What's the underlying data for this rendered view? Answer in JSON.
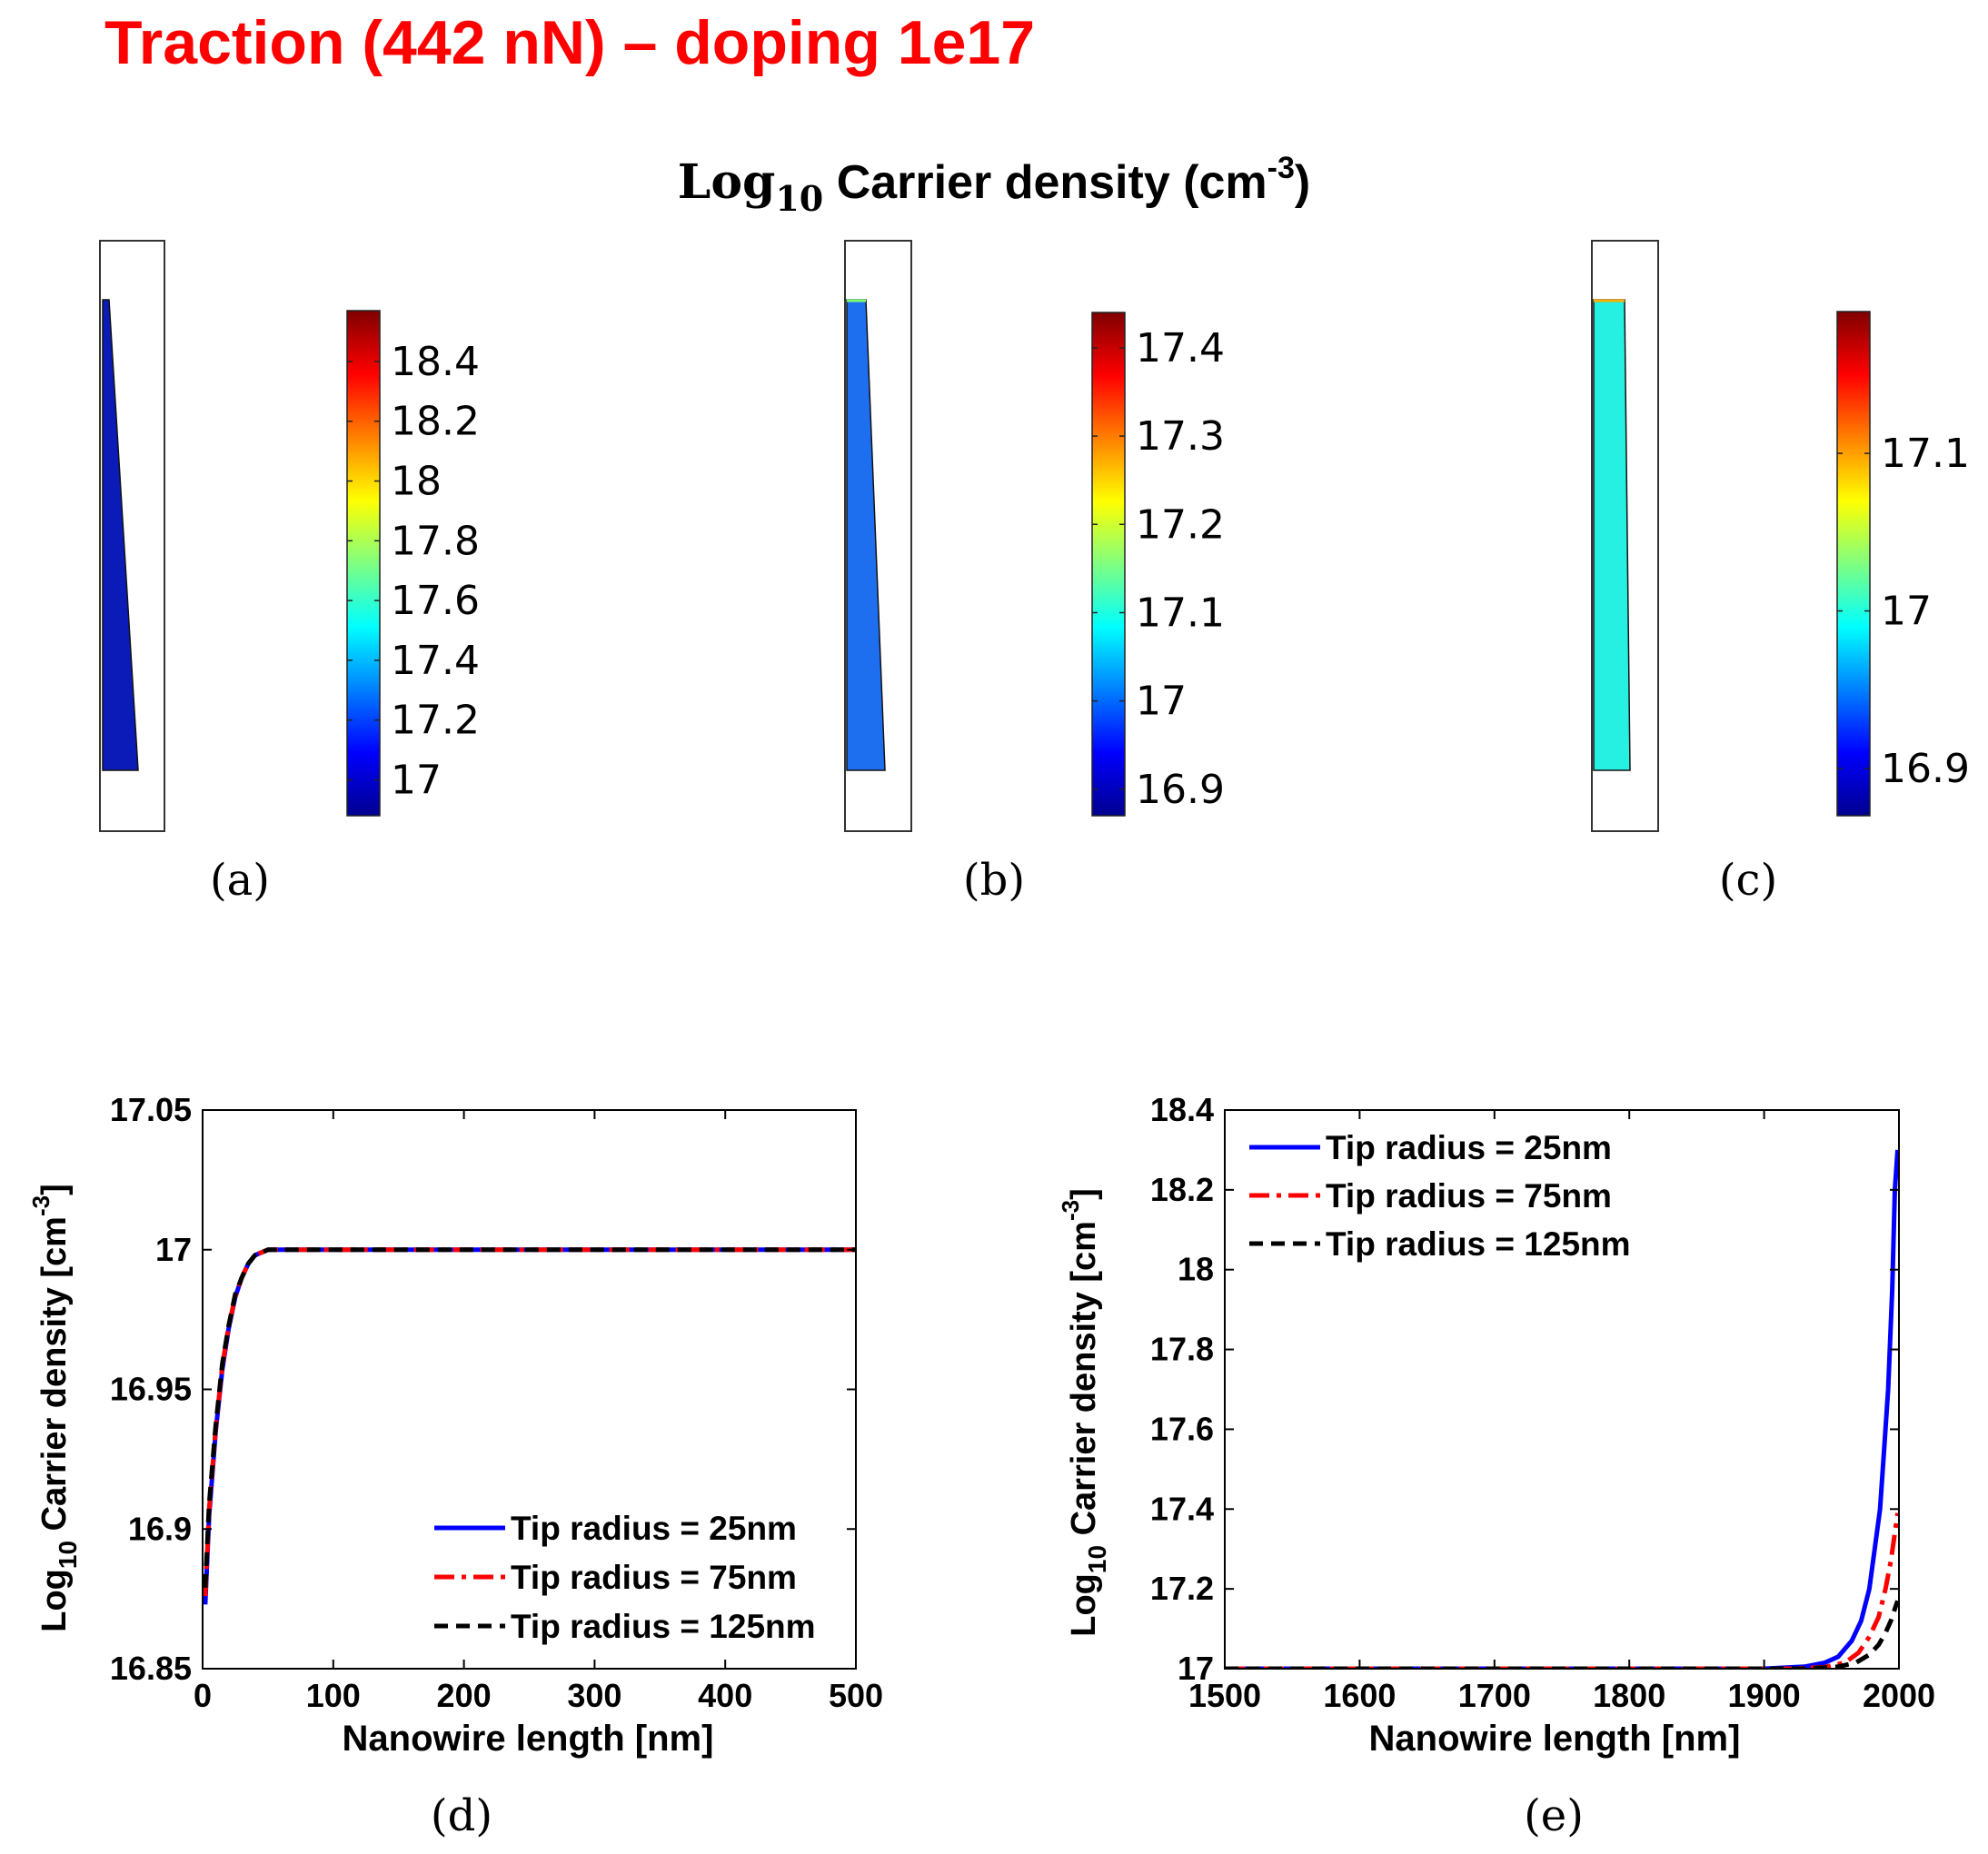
{
  "header": {
    "title": "Traction  (442 nN) – doping 1e17",
    "title_color": "#ff0000",
    "subtitle_prefix": "Log",
    "subtitle_sub": "10",
    "subtitle_main": " Carrier density (cm",
    "subtitle_sup": "-3",
    "subtitle_end": ")"
  },
  "panel_labels": [
    "(a)",
    "(b)",
    "(c)",
    "(d)",
    "(e)"
  ],
  "colors": {
    "tip25": "#0000ff",
    "tip75": "#ff0000",
    "tip125": "#000000",
    "fill_a": "#0a1bb8",
    "fill_b": "#1e6ff0",
    "fill_c": "#25f0e2"
  },
  "colormap": [
    "#00008f",
    "#0000ff",
    "#0080ff",
    "#00ffff",
    "#80ff80",
    "#ffff00",
    "#ff8000",
    "#ff0000",
    "#800000"
  ],
  "chart_data": [
    {
      "type": "heatmap",
      "label": "(a)",
      "colorbar_range": [
        16.88,
        18.57
      ],
      "colorbar_ticks": [
        "18.4",
        "18.2",
        "18",
        "17.8",
        "17.6",
        "17.4",
        "17.2",
        "17"
      ],
      "colorbar_tick_values": [
        18.4,
        18.2,
        18,
        17.8,
        17.6,
        17.4,
        17.2,
        17
      ]
    },
    {
      "type": "heatmap",
      "label": "(b)",
      "colorbar_range": [
        16.87,
        17.44
      ],
      "colorbar_ticks": [
        "17.4",
        "17.3",
        "17.2",
        "17.1",
        "17",
        "16.9"
      ],
      "colorbar_tick_values": [
        17.4,
        17.3,
        17.2,
        17.1,
        17,
        16.9
      ]
    },
    {
      "type": "heatmap",
      "label": "(c)",
      "colorbar_range": [
        16.87,
        17.19
      ],
      "colorbar_ticks": [
        "17.1",
        "17",
        "16.9"
      ],
      "colorbar_tick_values": [
        17.1,
        17,
        16.9
      ]
    },
    {
      "type": "line",
      "label": "(d)",
      "xlabel": "Nanowire length [nm]",
      "ylabel_prefix": "Log",
      "ylabel_sub": "10",
      "ylabel_main": " Carrier density [cm",
      "ylabel_sup": "-3",
      "ylabel_end": "]",
      "xlim": [
        0,
        500
      ],
      "ylim": [
        16.85,
        17.05
      ],
      "xticks": [
        "0",
        "100",
        "200",
        "300",
        "400",
        "500"
      ],
      "xtick_values": [
        0,
        100,
        200,
        300,
        400,
        500
      ],
      "yticks": [
        "17.05",
        "17",
        "16.95",
        "16.9",
        "16.85"
      ],
      "ytick_values": [
        17.05,
        17,
        16.95,
        16.9,
        16.85
      ],
      "legend": "bottom-right",
      "series": [
        {
          "name": "Tip radius = 25nm",
          "x": [
            2,
            5,
            10,
            15,
            20,
            25,
            30,
            35,
            40,
            45,
            50,
            60,
            70,
            100,
            200,
            300,
            400,
            500
          ],
          "y": [
            16.873,
            16.905,
            16.935,
            16.957,
            16.972,
            16.983,
            16.99,
            16.995,
            16.998,
            16.999,
            17.0,
            17.0,
            17.0,
            17.0,
            17.0,
            17.0,
            17.0,
            17.0
          ]
        },
        {
          "name": "Tip radius = 75nm",
          "x": [
            2,
            5,
            10,
            15,
            20,
            25,
            30,
            35,
            40,
            45,
            50,
            60,
            70,
            100,
            200,
            300,
            400,
            500
          ],
          "y": [
            16.876,
            16.907,
            16.936,
            16.958,
            16.973,
            16.983,
            16.99,
            16.995,
            16.998,
            16.999,
            17.0,
            17.0,
            17.0,
            17.0,
            17.0,
            17.0,
            17.0,
            17.0
          ]
        },
        {
          "name": "Tip radius = 125nm",
          "x": [
            2,
            5,
            10,
            15,
            20,
            25,
            30,
            35,
            40,
            45,
            50,
            60,
            70,
            100,
            200,
            300,
            400,
            500
          ],
          "y": [
            16.879,
            16.909,
            16.937,
            16.959,
            16.973,
            16.984,
            16.99,
            16.995,
            16.998,
            16.999,
            17.0,
            17.0,
            17.0,
            17.0,
            17.0,
            17.0,
            17.0,
            17.0
          ]
        }
      ]
    },
    {
      "type": "line",
      "label": "(e)",
      "xlabel": "Nanowire length [nm]",
      "ylabel_prefix": "Log",
      "ylabel_sub": "10",
      "ylabel_main": " Carrier density [cm",
      "ylabel_sup": "-3",
      "ylabel_end": "]",
      "xlim": [
        1500,
        2000
      ],
      "ylim": [
        17,
        18.4
      ],
      "xticks": [
        "1500",
        "1600",
        "1700",
        "1800",
        "1900",
        "2000"
      ],
      "xtick_values": [
        1500,
        1600,
        1700,
        1800,
        1900,
        2000
      ],
      "yticks": [
        "18.4",
        "18.2",
        "18",
        "17.8",
        "17.6",
        "17.4",
        "17.2",
        "17"
      ],
      "ytick_values": [
        18.4,
        18.2,
        18,
        17.8,
        17.6,
        17.4,
        17.2,
        17
      ],
      "legend": "top-left",
      "series": [
        {
          "name": "Tip radius = 25nm",
          "x": [
            1500,
            1900,
            1930,
            1945,
            1955,
            1965,
            1972,
            1978,
            1982,
            1986,
            1989,
            1992,
            1995,
            1997,
            1999
          ],
          "y": [
            17.0,
            17.0,
            17.005,
            17.015,
            17.03,
            17.07,
            17.12,
            17.2,
            17.3,
            17.4,
            17.55,
            17.7,
            17.95,
            18.2,
            18.3
          ]
        },
        {
          "name": "Tip radius = 75nm",
          "x": [
            1500,
            1920,
            1945,
            1960,
            1970,
            1978,
            1985,
            1990,
            1994,
            1997,
            1999
          ],
          "y": [
            17.0,
            17.0,
            17.004,
            17.015,
            17.04,
            17.08,
            17.13,
            17.2,
            17.27,
            17.34,
            17.39
          ]
        },
        {
          "name": "Tip radius = 125nm",
          "x": [
            1500,
            1930,
            1955,
            1968,
            1978,
            1985,
            1990,
            1994,
            1997,
            1999
          ],
          "y": [
            17.0,
            17.0,
            17.005,
            17.015,
            17.035,
            17.06,
            17.09,
            17.12,
            17.15,
            17.17
          ]
        }
      ]
    }
  ]
}
